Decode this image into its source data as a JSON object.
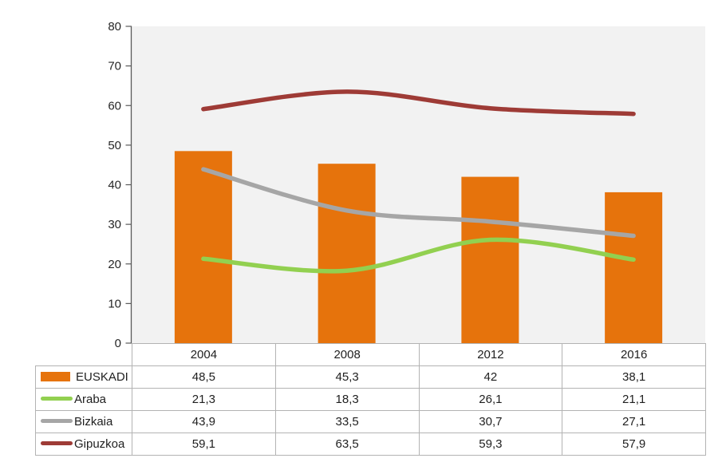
{
  "chart_data": {
    "type": "combo",
    "categories": [
      "2004",
      "2008",
      "2012",
      "2016"
    ],
    "series": [
      {
        "name": "EUSKADI",
        "kind": "bar",
        "color": "#e6730c",
        "values": [
          48.5,
          45.3,
          42.0,
          38.1
        ],
        "labels": [
          "48,5",
          "45,3",
          "42",
          "38,1"
        ]
      },
      {
        "name": "Araba",
        "kind": "line",
        "color": "#92d050",
        "values": [
          21.3,
          18.3,
          26.1,
          21.1
        ],
        "labels": [
          "21,3",
          "18,3",
          "26,1",
          "21,1"
        ]
      },
      {
        "name": "Bizkaia",
        "kind": "line",
        "color": "#a6a6a6",
        "values": [
          43.9,
          33.5,
          30.7,
          27.1
        ],
        "labels": [
          "43,9",
          "33,5",
          "30,7",
          "27,1"
        ]
      },
      {
        "name": "Gipuzkoa",
        "kind": "line",
        "color": "#9e3b36",
        "values": [
          59.1,
          63.5,
          59.3,
          57.9
        ],
        "labels": [
          "59,1",
          "63,5",
          "59,3",
          "57,9"
        ]
      }
    ],
    "title": "",
    "xlabel": "",
    "ylabel": "",
    "ylim": [
      0,
      80
    ],
    "ytick_step": 10,
    "ytick_labels": [
      "0",
      "10",
      "20",
      "30",
      "40",
      "50",
      "60",
      "70",
      "80"
    ],
    "grid": false,
    "legend_position": "data-table-left",
    "plot_bg": "#f2f2f2",
    "axis_color": "#595959",
    "text_color": "#262626"
  }
}
